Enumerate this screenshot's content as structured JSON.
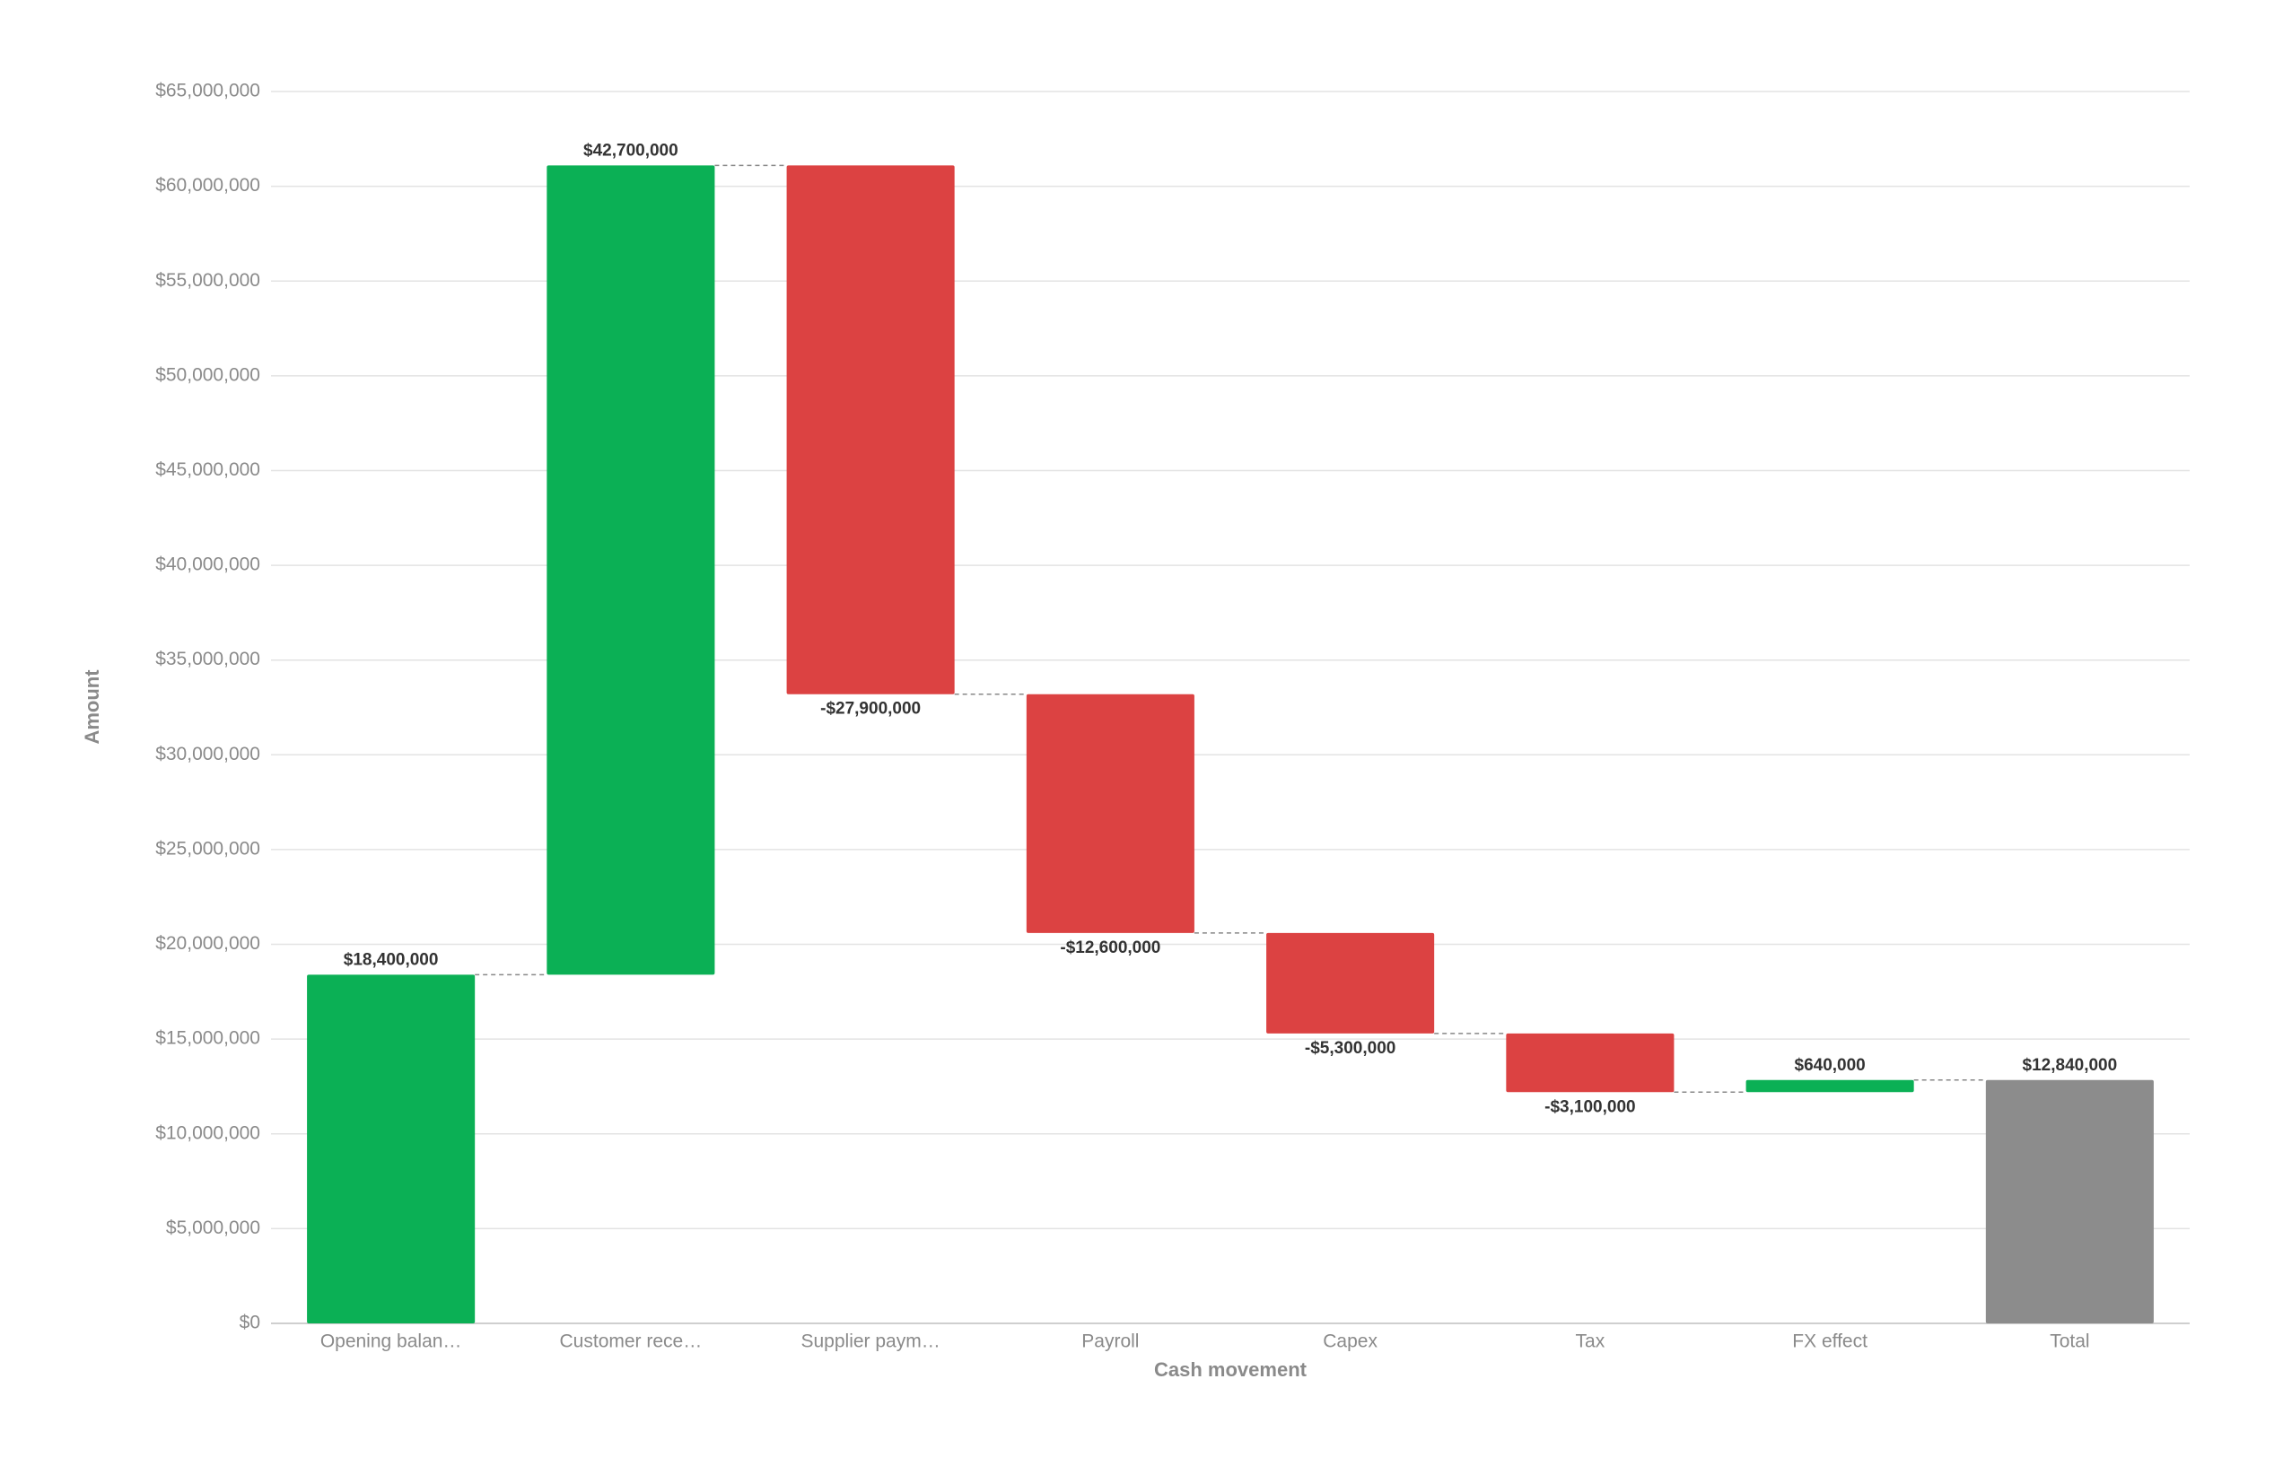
{
  "chart_data": {
    "type": "waterfall",
    "x_label": "Cash movement",
    "y_label": "Amount",
    "categories": [
      "Opening balan…",
      "Customer rece…",
      "Supplier paym…",
      "Payroll",
      "Capex",
      "Tax",
      "FX effect",
      "Total"
    ],
    "values": [
      18400000,
      42700000,
      -27900000,
      -12600000,
      -5300000,
      -3100000,
      640000,
      12840000
    ],
    "value_labels": [
      "$18,400,000",
      "$42,700,000",
      "-$27,900,000",
      "-$12,600,000",
      "-$5,300,000",
      "-$3,100,000",
      "$640,000",
      "$12,840,000"
    ],
    "last_is_total": true,
    "increase_color": "#0bb055",
    "decrease_color": "#dc4242",
    "total_color": "#8c8c8c",
    "ylim": [
      0,
      65000000
    ],
    "yticks": [
      {
        "value": 0,
        "label": "$0"
      },
      {
        "value": 5000000,
        "label": "$5,000,000"
      },
      {
        "value": 10000000,
        "label": "$10,000,000"
      },
      {
        "value": 15000000,
        "label": "$15,000,000"
      },
      {
        "value": 20000000,
        "label": "$20,000,000"
      },
      {
        "value": 25000000,
        "label": "$25,000,000"
      },
      {
        "value": 30000000,
        "label": "$30,000,000"
      },
      {
        "value": 35000000,
        "label": "$35,000,000"
      },
      {
        "value": 40000000,
        "label": "$40,000,000"
      },
      {
        "value": 45000000,
        "label": "$45,000,000"
      },
      {
        "value": 50000000,
        "label": "$50,000,000"
      },
      {
        "value": 55000000,
        "label": "$55,000,000"
      },
      {
        "value": 60000000,
        "label": "$60,000,000"
      },
      {
        "value": 65000000,
        "label": "$65,000,000"
      }
    ],
    "grid": true
  }
}
